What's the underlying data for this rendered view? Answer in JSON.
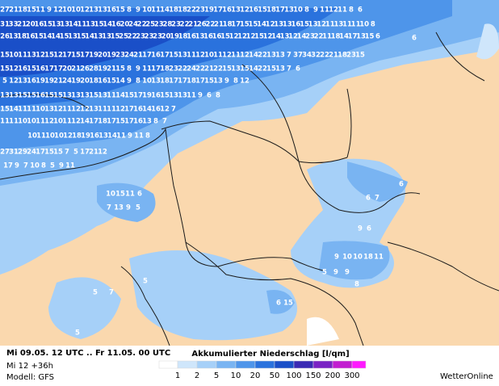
{
  "map_labels": {
    "rows": [
      [
        27,
        21,
        18,
        15,
        11,
        9,
        12,
        10,
        10,
        12,
        13,
        13,
        16,
        15,
        8,
        9,
        10,
        11,
        14,
        18,
        18,
        22,
        23,
        19,
        17,
        16,
        13,
        12,
        16,
        15,
        18,
        17,
        13,
        10,
        8,
        9,
        11,
        12,
        11,
        8,
        6
      ],
      [
        31,
        33,
        21,
        20,
        16,
        15,
        13,
        13,
        14,
        11,
        13,
        15,
        14,
        16,
        20,
        24,
        22,
        25,
        23,
        28,
        23,
        22,
        21,
        26,
        22,
        21,
        18,
        17,
        15,
        15,
        14,
        12,
        13,
        13,
        16,
        15,
        13,
        12,
        11,
        13,
        11,
        11,
        10,
        8
      ],
      [
        26,
        13,
        18,
        16,
        15,
        14,
        14,
        15,
        13,
        15,
        14,
        13,
        13,
        15,
        25,
        22,
        23,
        23,
        23,
        20,
        19,
        18,
        16,
        13,
        16,
        16,
        15,
        12,
        12,
        12,
        15,
        12,
        14,
        13,
        12,
        14,
        23,
        22,
        11,
        18,
        14,
        17,
        13,
        15,
        6
      ],
      [
        15,
        10,
        11,
        13,
        12,
        15,
        12,
        17,
        15,
        17,
        19,
        20,
        19,
        23,
        24,
        21,
        17,
        16,
        17,
        15,
        13,
        11,
        12,
        10,
        11,
        12,
        11,
        12,
        14,
        22,
        13,
        13,
        7,
        37,
        34,
        32,
        22,
        21,
        18,
        23,
        15
      ],
      [
        15,
        12,
        16,
        15,
        16,
        17,
        17,
        20,
        21,
        26,
        28,
        19,
        21,
        15,
        8,
        9,
        11,
        17,
        18,
        23,
        22,
        24,
        22,
        21,
        22,
        15,
        13,
        15,
        14,
        22,
        15,
        13,
        7,
        6
      ],
      [
        5,
        12,
        13,
        16,
        19,
        19,
        21,
        24,
        19,
        20,
        18,
        16,
        15,
        14,
        9,
        8,
        10,
        13,
        18,
        17,
        17,
        18,
        17,
        15,
        13,
        9,
        8,
        12
      ],
      [
        13,
        13,
        15,
        15,
        16,
        15,
        15,
        13,
        13,
        13,
        15,
        13,
        11,
        14,
        15,
        17,
        19,
        16,
        15,
        13,
        13,
        11,
        9,
        6,
        8
      ],
      [
        15,
        14,
        11,
        11,
        10,
        13,
        12,
        11,
        12,
        12,
        13,
        11,
        11,
        12,
        17,
        16,
        14,
        16,
        12,
        7
      ],
      [
        11,
        11,
        10,
        10,
        11,
        12,
        10,
        11,
        12,
        14,
        17,
        18,
        17,
        15,
        17,
        16,
        13,
        8,
        7
      ],
      [
        10,
        11,
        10,
        10,
        12,
        18,
        19,
        16,
        13,
        14,
        11,
        9,
        11,
        8
      ],
      [
        27,
        31,
        29,
        24,
        17,
        15,
        15,
        7,
        5,
        17,
        21,
        12
      ],
      [
        17,
        9,
        7,
        10,
        8,
        5,
        9,
        11
      ],
      [
        10,
        15,
        11,
        6
      ],
      [
        7,
        13,
        9,
        5
      ],
      [
        5,
        7
      ],
      [
        6,
        15
      ],
      [
        9,
        10,
        10,
        18,
        11
      ],
      [
        5,
        9,
        9
      ],
      [
        6,
        7
      ],
      [
        9,
        6
      ],
      [
        6
      ],
      [
        6
      ],
      [
        5
      ],
      [
        5
      ],
      [
        8
      ]
    ]
  },
  "legend": {
    "title": "Akkumulierter Niederschlag [l/qm]",
    "levels": [
      1,
      2,
      5,
      10,
      20,
      50,
      100,
      150,
      200,
      300
    ],
    "colors": [
      "#ffffff",
      "#cfe6fb",
      "#a6d0f8",
      "#79b4f2",
      "#4e95ea",
      "#2a72dd",
      "#1a4fc8",
      "#3a2ab4",
      "#7a22c4",
      "#c21ed0",
      "#ff19ff"
    ]
  },
  "footer": {
    "period": "Mi 09.05. 12 UTC .. Fr 11.05. 00 UTC",
    "run": "Mi 12 +36h",
    "model": "Modell: GFS",
    "brand": "WetterOnline"
  }
}
